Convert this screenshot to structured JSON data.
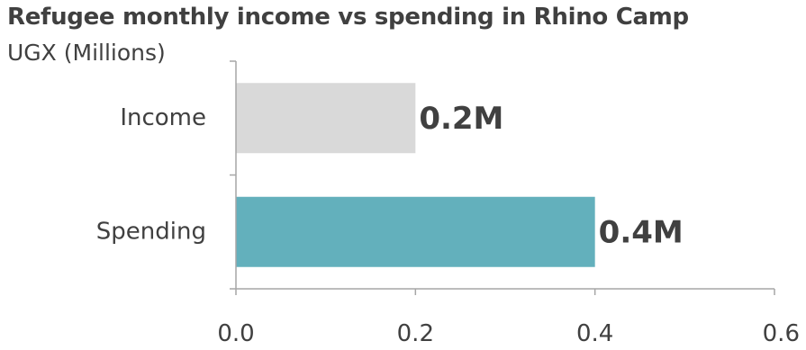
{
  "chart_data": {
    "type": "bar",
    "orientation": "horizontal",
    "title": "Refugee monthly income vs spending in Rhino Camp",
    "subtitle": "UGX (Millions)",
    "categories": [
      "Income",
      "Spending"
    ],
    "values": [
      0.2,
      0.4
    ],
    "data_labels": [
      "0.2M",
      "0.4M"
    ],
    "bar_colors": [
      "#d9d9d9",
      "#63b0bc"
    ],
    "xlim": [
      0,
      0.6
    ],
    "xticks": [
      "0.0",
      "0.2",
      "0.4",
      "0.6"
    ],
    "grid": false,
    "legend": "none"
  }
}
